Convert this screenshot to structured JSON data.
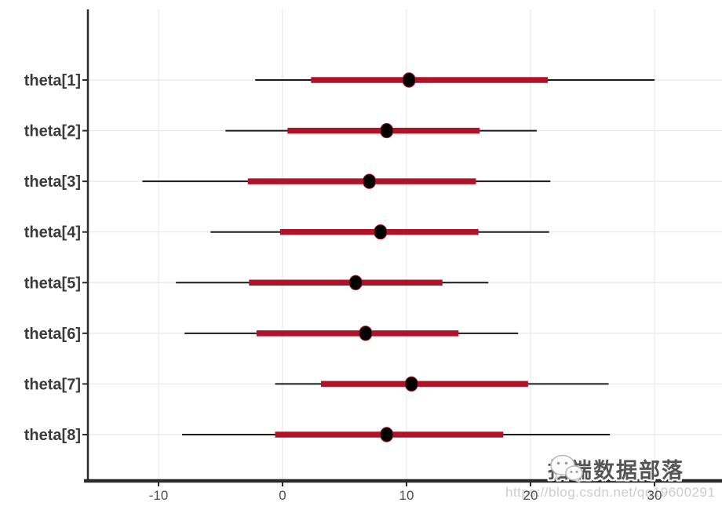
{
  "chart_data": {
    "type": "interval",
    "orientation": "horizontal",
    "title": "",
    "xlabel": "",
    "ylabel": "",
    "legend": "none",
    "grid": "major-vertical-and-row-lines",
    "x_ticks": [
      -10,
      0,
      10,
      20,
      30
    ],
    "xlim": [
      -15.7,
      35.4
    ],
    "parameters": [
      "theta[1]",
      "theta[2]",
      "theta[3]",
      "theta[4]",
      "theta[5]",
      "theta[6]",
      "theta[7]",
      "theta[8]"
    ],
    "series": [
      {
        "name": "theta[1]",
        "point": 10.2,
        "inner": [
          2.3,
          21.4
        ],
        "outer": [
          -2.2,
          30.0
        ]
      },
      {
        "name": "theta[2]",
        "point": 8.4,
        "inner": [
          0.4,
          15.9
        ],
        "outer": [
          -4.6,
          20.5
        ]
      },
      {
        "name": "theta[3]",
        "point": 7.0,
        "inner": [
          -2.8,
          15.6
        ],
        "outer": [
          -11.3,
          21.6
        ]
      },
      {
        "name": "theta[4]",
        "point": 7.9,
        "inner": [
          -0.2,
          15.8
        ],
        "outer": [
          -5.8,
          21.5
        ]
      },
      {
        "name": "theta[5]",
        "point": 5.9,
        "inner": [
          -2.7,
          12.9
        ],
        "outer": [
          -8.6,
          16.6
        ]
      },
      {
        "name": "theta[6]",
        "point": 6.7,
        "inner": [
          -2.1,
          14.2
        ],
        "outer": [
          -7.9,
          19.0
        ]
      },
      {
        "name": "theta[7]",
        "point": 10.4,
        "inner": [
          3.1,
          19.8
        ],
        "outer": [
          -0.6,
          26.3
        ]
      },
      {
        "name": "theta[8]",
        "point": 8.4,
        "inner": [
          -0.6,
          17.8
        ],
        "outer": [
          -8.1,
          26.4
        ]
      }
    ],
    "colors": {
      "inner_interval": "#b01327",
      "outer_interval": "#1a1a1a",
      "point": "#000000",
      "gridline": "#e8e8e8",
      "axis_line": "#2b2b2b",
      "tick_label": "#4d4d4d",
      "param_label": "#3a3a3a",
      "background": "#ffffff"
    }
  },
  "watermark": {
    "icon": "wechat-icon",
    "brand_text": "拓端数据部落",
    "url_text": "https://blog.csdn.net/qq19600291"
  }
}
